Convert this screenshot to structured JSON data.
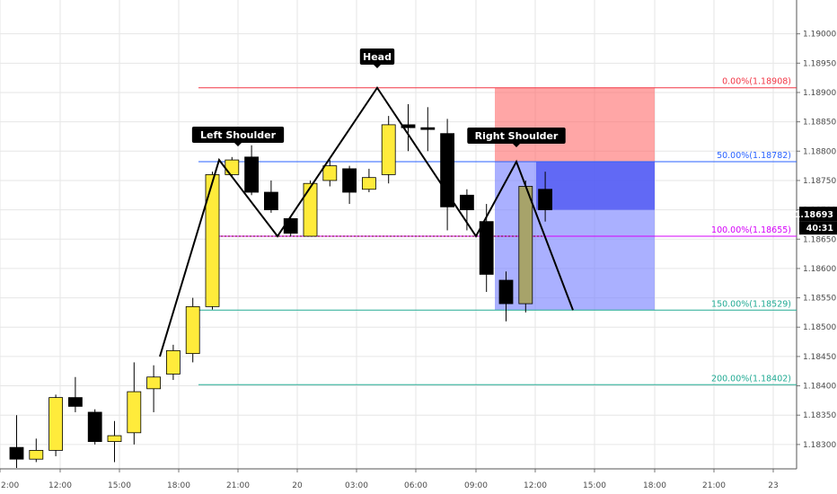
{
  "chart_data": {
    "type": "candlestick",
    "y_axis": {
      "range": [
        1.1826,
        1.1905
      ],
      "ticks": [
        "1.19000",
        "1.18950",
        "1.18900",
        "1.18850",
        "1.18800",
        "1.18750",
        "1.18700",
        "1.18650",
        "1.18600",
        "1.18550",
        "1.18500",
        "1.18450",
        "1.18400",
        "1.18350",
        "1.18300"
      ]
    },
    "x_axis": {
      "tick_labels": [
        "2:00",
        "12:00",
        "15:00",
        "18:00",
        "21:00",
        "20",
        "03:00",
        "06:00",
        "09:00",
        "12:00",
        "15:00",
        "18:00",
        "21:00",
        "23"
      ]
    },
    "candles": [
      {
        "o": 1.18295,
        "h": 1.1835,
        "l": 1.1826,
        "c": 1.18275
      },
      {
        "o": 1.18275,
        "h": 1.1831,
        "l": 1.1827,
        "c": 1.1829
      },
      {
        "o": 1.1829,
        "h": 1.18385,
        "l": 1.1828,
        "c": 1.1838
      },
      {
        "o": 1.1838,
        "h": 1.18415,
        "l": 1.18355,
        "c": 1.18365
      },
      {
        "o": 1.18355,
        "h": 1.1836,
        "l": 1.183,
        "c": 1.18305
      },
      {
        "o": 1.18305,
        "h": 1.1834,
        "l": 1.1827,
        "c": 1.18315
      },
      {
        "o": 1.1832,
        "h": 1.1844,
        "l": 1.183,
        "c": 1.1839
      },
      {
        "o": 1.18395,
        "h": 1.18435,
        "l": 1.18355,
        "c": 1.18415
      },
      {
        "o": 1.1842,
        "h": 1.1847,
        "l": 1.1841,
        "c": 1.1846
      },
      {
        "o": 1.18455,
        "h": 1.1855,
        "l": 1.1844,
        "c": 1.18535
      },
      {
        "o": 1.18535,
        "h": 1.18765,
        "l": 1.1853,
        "c": 1.1876
      },
      {
        "o": 1.1876,
        "h": 1.1879,
        "l": 1.18755,
        "c": 1.18785
      },
      {
        "o": 1.1879,
        "h": 1.1881,
        "l": 1.18725,
        "c": 1.1873
      },
      {
        "o": 1.1873,
        "h": 1.1875,
        "l": 1.18695,
        "c": 1.187
      },
      {
        "o": 1.18685,
        "h": 1.1869,
        "l": 1.18655,
        "c": 1.1866
      },
      {
        "o": 1.18655,
        "h": 1.1875,
        "l": 1.18655,
        "c": 1.18745
      },
      {
        "o": 1.1875,
        "h": 1.18785,
        "l": 1.1874,
        "c": 1.18775
      },
      {
        "o": 1.1877,
        "h": 1.18775,
        "l": 1.1871,
        "c": 1.1873
      },
      {
        "o": 1.18735,
        "h": 1.1877,
        "l": 1.1873,
        "c": 1.18755
      },
      {
        "o": 1.1876,
        "h": 1.1886,
        "l": 1.18745,
        "c": 1.18845
      },
      {
        "o": 1.18845,
        "h": 1.1888,
        "l": 1.188,
        "c": 1.1884
      },
      {
        "o": 1.1884,
        "h": 1.18875,
        "l": 1.188,
        "c": 1.18838
      },
      {
        "o": 1.1883,
        "h": 1.18855,
        "l": 1.18665,
        "c": 1.18705
      },
      {
        "o": 1.18725,
        "h": 1.18735,
        "l": 1.18665,
        "c": 1.187
      },
      {
        "o": 1.1868,
        "h": 1.1871,
        "l": 1.1856,
        "c": 1.1859
      },
      {
        "o": 1.1858,
        "h": 1.18595,
        "l": 1.1851,
        "c": 1.1854
      },
      {
        "o": 1.1854,
        "h": 1.1875,
        "l": 1.18525,
        "c": 1.1874
      },
      {
        "o": 1.18735,
        "h": 1.18765,
        "l": 1.1868,
        "c": 1.187
      }
    ],
    "fibonacci_levels": [
      {
        "label": "0.00%(1.18908)",
        "value": 1.18908,
        "color": "#f23645"
      },
      {
        "label": "50.00%(1.18782)",
        "value": 1.18782,
        "color": "#2962ff"
      },
      {
        "label": "100.00%(1.18655)",
        "value": 1.18655,
        "color": "#d500f9"
      },
      {
        "label": "150.00%(1.18529)",
        "value": 1.18529,
        "color": "#22ab94"
      },
      {
        "label": "200.00%(1.18402)",
        "value": 1.18402,
        "color": "#22ab94"
      }
    ],
    "pattern_labels": [
      "Left Shoulder",
      "Head",
      "Right Shoulder"
    ],
    "pattern_path_prices": [
      1.1845,
      1.18785,
      1.18655,
      1.18908,
      1.18655,
      1.18782,
      1.18529
    ],
    "current_price": "1.18693",
    "countdown": "40:31",
    "colors": {
      "bull_body": "#ffeb3b",
      "bear_body": "#000000",
      "selected_body": "#a7a36a",
      "risk_zone": "#ff6b6b",
      "reward_zone": "#7d86ff",
      "grid": "#e6e6e6"
    }
  }
}
